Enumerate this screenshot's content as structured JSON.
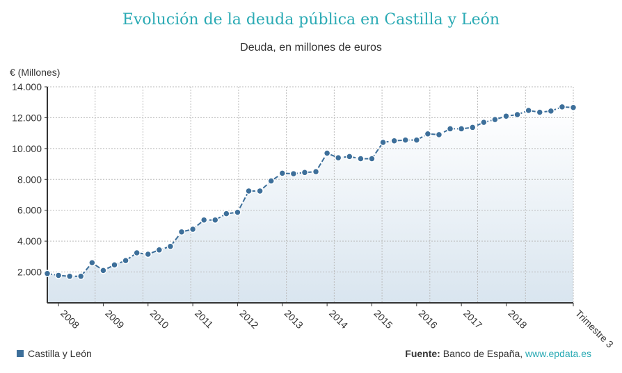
{
  "chart_data": {
    "type": "area",
    "title": "Evolución de la deuda pública en Castilla y León",
    "subtitle": "Deuda, en millones de euros",
    "ylabel": "€ (Millones)",
    "xlabel": "",
    "ylim": [
      0,
      14000
    ],
    "yticks": [
      "2.000",
      "4.000",
      "6.000",
      "8.000",
      "10.000",
      "12.000",
      "14.000"
    ],
    "ytick_values": [
      2000,
      4000,
      6000,
      8000,
      10000,
      12000,
      14000
    ],
    "xtick_labels": [
      "2008",
      "2009",
      "2010",
      "2011",
      "2012",
      "2013",
      "2014",
      "2015",
      "2016",
      "2017",
      "2018",
      "Trimestre 3"
    ],
    "xtick_indices": [
      1,
      5,
      9,
      13,
      17,
      21,
      25,
      29,
      33,
      37,
      41,
      47
    ],
    "grid": true,
    "legend_position": "bottom-left",
    "series": [
      {
        "name": "Castilla y León",
        "color": "#3d6f9a",
        "values": [
          1900,
          1780,
          1720,
          1720,
          2600,
          2100,
          2460,
          2740,
          3240,
          3150,
          3430,
          3660,
          4600,
          4770,
          5370,
          5370,
          5780,
          5870,
          7250,
          7250,
          7900,
          8400,
          8370,
          8450,
          8500,
          9700,
          9400,
          9480,
          9340,
          9340,
          10400,
          10500,
          10550,
          10550,
          10950,
          10900,
          11280,
          11280,
          11370,
          11700,
          11880,
          12100,
          12200,
          12470,
          12350,
          12430,
          12700,
          12660
        ]
      }
    ]
  },
  "footer": {
    "source_label": "Fuente:",
    "source_text": " Banco de España, ",
    "source_link": "www.epdata.es"
  }
}
